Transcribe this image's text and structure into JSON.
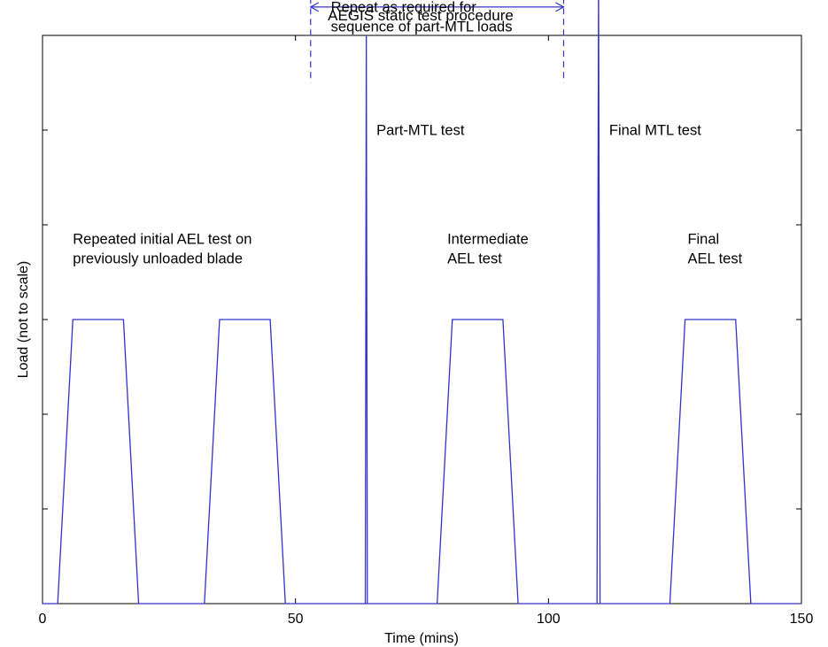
{
  "chart_data": {
    "type": "line",
    "title": "AEGIS static test procedure",
    "xlabel": "Time (mins)",
    "ylabel": "Load (not to scale)",
    "xlim": [
      0,
      150
    ],
    "ylim": [
      0,
      6
    ],
    "x_ticks": [
      0,
      50,
      100,
      150
    ],
    "x_tick_labels": [
      "0",
      "50",
      "100",
      "150"
    ],
    "y_ticks": [
      0,
      1,
      2,
      3,
      4,
      5,
      6
    ],
    "y_tick_labels": [
      "",
      "",
      "",
      "",
      "",
      "",
      ""
    ],
    "grid": false,
    "line_color": "#3333cc",
    "series": [
      {
        "x": [
          0,
          3,
          6,
          16,
          19,
          32,
          35,
          45,
          48,
          63.8,
          64,
          64.2,
          64.4,
          78,
          81,
          91,
          94,
          109.6,
          109.9,
          110.2,
          124,
          127,
          137,
          140,
          150
        ],
        "y": [
          0,
          0,
          3,
          3,
          0,
          0,
          3,
          3,
          0,
          0,
          6,
          0,
          0,
          0,
          3,
          3,
          0,
          0,
          6.6,
          0,
          0,
          3,
          3,
          0,
          0
        ]
      }
    ],
    "annotations": [
      {
        "lines": [
          "Repeated initial AEL test on",
          "previously unloaded blade"
        ],
        "x": 6,
        "y": 3.8,
        "anchor": "start"
      },
      {
        "lines": [
          "Part-MTL test"
        ],
        "x": 66,
        "y": 4.95,
        "anchor": "start"
      },
      {
        "lines": [
          "Intermediate",
          "AEL test"
        ],
        "x": 80,
        "y": 3.8,
        "anchor": "start"
      },
      {
        "lines": [
          "Final MTL test"
        ],
        "x": 112,
        "y": 4.95,
        "anchor": "start"
      },
      {
        "lines": [
          "Final",
          "AEL test"
        ],
        "x": 127.5,
        "y": 3.8,
        "anchor": "start"
      },
      {
        "lines": [
          "Repeat as required for",
          "sequence of part-MTL loads"
        ],
        "x": 57,
        "y": 6.25,
        "anchor": "start"
      }
    ],
    "bracket": {
      "x_start": 53,
      "x_end": 103,
      "y_arrow": 6.3,
      "y_top": 6.4,
      "y_bottom": 5.5,
      "style": "dashed"
    }
  }
}
